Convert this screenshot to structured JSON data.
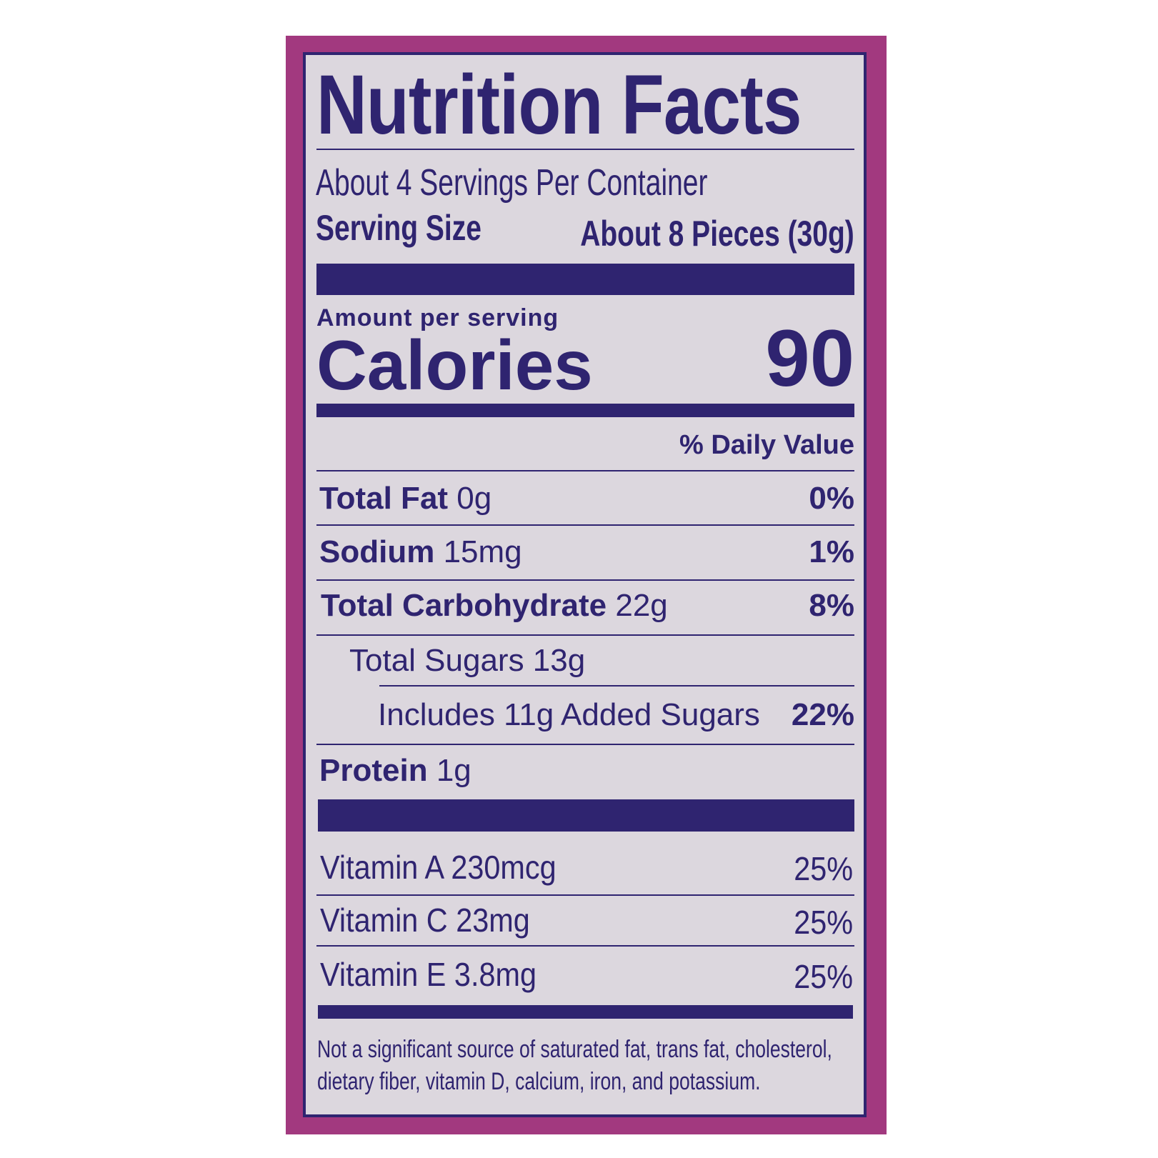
{
  "title": "Nutrition Facts",
  "servings_per_container": "About 4 Servings Per Container",
  "serving_size_label": "Serving Size",
  "serving_size_value": "About 8 Pieces (30g)",
  "amount_per_serving": "Amount per serving",
  "calories_label": "Calories",
  "calories_value": "90",
  "daily_value_header": "% Daily Value",
  "nutrients": [
    {
      "name": "Total Fat",
      "amount": "0g",
      "dv": "0%"
    },
    {
      "name": "Sodium",
      "amount": "15mg",
      "dv": "1%"
    },
    {
      "name": "Total Carbohydrate",
      "amount": "22g",
      "dv": "8%"
    },
    {
      "name": "Total Sugars 13g",
      "amount": "",
      "dv": ""
    },
    {
      "name": "Includes 11g Added Sugars",
      "amount": "",
      "dv": "22%"
    },
    {
      "name": "Protein",
      "amount": "1g",
      "dv": ""
    }
  ],
  "vitamins": [
    {
      "name": "Vitamin A 230mcg",
      "dv": "25%"
    },
    {
      "name": "Vitamin C 23mg",
      "dv": "25%"
    },
    {
      "name": "Vitamin E 3.8mg",
      "dv": "25%"
    }
  ],
  "footnote_line1": "Not a significant source of saturated fat, trans fat, cholesterol,",
  "footnote_line2": "dietary fiber, vitamin D, calcium, iron, and potassium.",
  "colors": {
    "ink": "#2f2470",
    "panel": "#dcd7de",
    "frame": "#a2397f"
  }
}
